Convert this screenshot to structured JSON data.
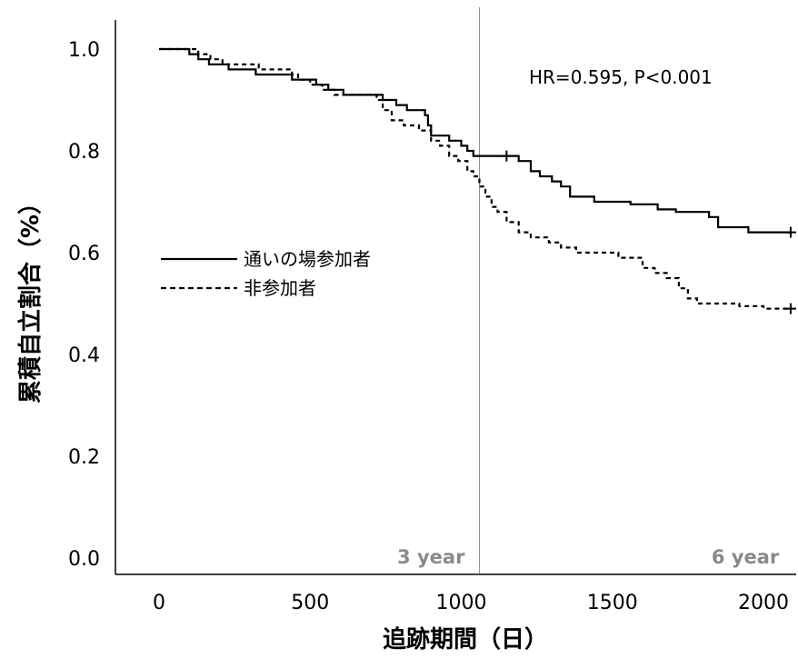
{
  "chart_data": {
    "type": "line",
    "title": "",
    "xlabel": "追跡期間（日）",
    "ylabel": "累積自立割合（%）",
    "xlim": [
      0,
      2100
    ],
    "ylim": [
      0,
      1.0
    ],
    "xticks": [
      0,
      500,
      1000,
      1500,
      2000
    ],
    "xtick_labels": [
      "0",
      "500",
      "1000",
      "1500",
      "2000"
    ],
    "yticks": [
      0.0,
      0.2,
      0.4,
      0.6,
      0.8,
      1.0
    ],
    "ytick_labels": [
      "0.0",
      "0.2",
      "0.4",
      "0.6",
      "0.8",
      "1.0"
    ],
    "grid": false,
    "legend_position": "middle-left",
    "annotation": "HR=0.595, P<0.001",
    "reference_lines": [
      {
        "x": 1060,
        "label": "3 year"
      },
      {
        "x": 2100,
        "label": "6 year"
      }
    ],
    "series": [
      {
        "name": "通いの場参加者",
        "style": "solid",
        "steps": [
          [
            0,
            1.0
          ],
          [
            100,
            0.99
          ],
          [
            130,
            0.98
          ],
          [
            165,
            0.97
          ],
          [
            230,
            0.96
          ],
          [
            320,
            0.95
          ],
          [
            440,
            0.94
          ],
          [
            520,
            0.93
          ],
          [
            560,
            0.92
          ],
          [
            610,
            0.91
          ],
          [
            700,
            0.91
          ],
          [
            740,
            0.9
          ],
          [
            785,
            0.89
          ],
          [
            820,
            0.88
          ],
          [
            880,
            0.87
          ],
          [
            890,
            0.85
          ],
          [
            900,
            0.83
          ],
          [
            960,
            0.82
          ],
          [
            1000,
            0.81
          ],
          [
            1020,
            0.8
          ],
          [
            1040,
            0.79
          ],
          [
            1130,
            0.79
          ],
          [
            1190,
            0.78
          ],
          [
            1230,
            0.76
          ],
          [
            1260,
            0.75
          ],
          [
            1300,
            0.74
          ],
          [
            1330,
            0.73
          ],
          [
            1360,
            0.71
          ],
          [
            1440,
            0.7
          ],
          [
            1560,
            0.695
          ],
          [
            1650,
            0.685
          ],
          [
            1710,
            0.68
          ],
          [
            1820,
            0.67
          ],
          [
            1850,
            0.65
          ],
          [
            1950,
            0.64
          ],
          [
            2090,
            0.64
          ]
        ],
        "censor_marks": [
          1150,
          2090
        ]
      },
      {
        "name": "非参加者",
        "style": "dashed",
        "steps": [
          [
            0,
            1.0
          ],
          [
            130,
            0.99
          ],
          [
            170,
            0.98
          ],
          [
            210,
            0.97
          ],
          [
            330,
            0.96
          ],
          [
            440,
            0.95
          ],
          [
            460,
            0.94
          ],
          [
            500,
            0.93
          ],
          [
            540,
            0.92
          ],
          [
            580,
            0.91
          ],
          [
            700,
            0.91
          ],
          [
            720,
            0.9
          ],
          [
            740,
            0.88
          ],
          [
            770,
            0.86
          ],
          [
            810,
            0.85
          ],
          [
            860,
            0.84
          ],
          [
            900,
            0.82
          ],
          [
            930,
            0.81
          ],
          [
            960,
            0.79
          ],
          [
            990,
            0.78
          ],
          [
            1020,
            0.76
          ],
          [
            1040,
            0.75
          ],
          [
            1060,
            0.73
          ],
          [
            1080,
            0.71
          ],
          [
            1100,
            0.69
          ],
          [
            1120,
            0.68
          ],
          [
            1150,
            0.66
          ],
          [
            1190,
            0.64
          ],
          [
            1230,
            0.63
          ],
          [
            1290,
            0.62
          ],
          [
            1330,
            0.61
          ],
          [
            1380,
            0.6
          ],
          [
            1480,
            0.6
          ],
          [
            1520,
            0.59
          ],
          [
            1600,
            0.57
          ],
          [
            1640,
            0.56
          ],
          [
            1680,
            0.55
          ],
          [
            1720,
            0.53
          ],
          [
            1750,
            0.51
          ],
          [
            1780,
            0.5
          ],
          [
            1850,
            0.5
          ],
          [
            1920,
            0.495
          ],
          [
            2000,
            0.49
          ],
          [
            2090,
            0.49
          ]
        ],
        "censor_marks": [
          2090
        ]
      }
    ]
  }
}
